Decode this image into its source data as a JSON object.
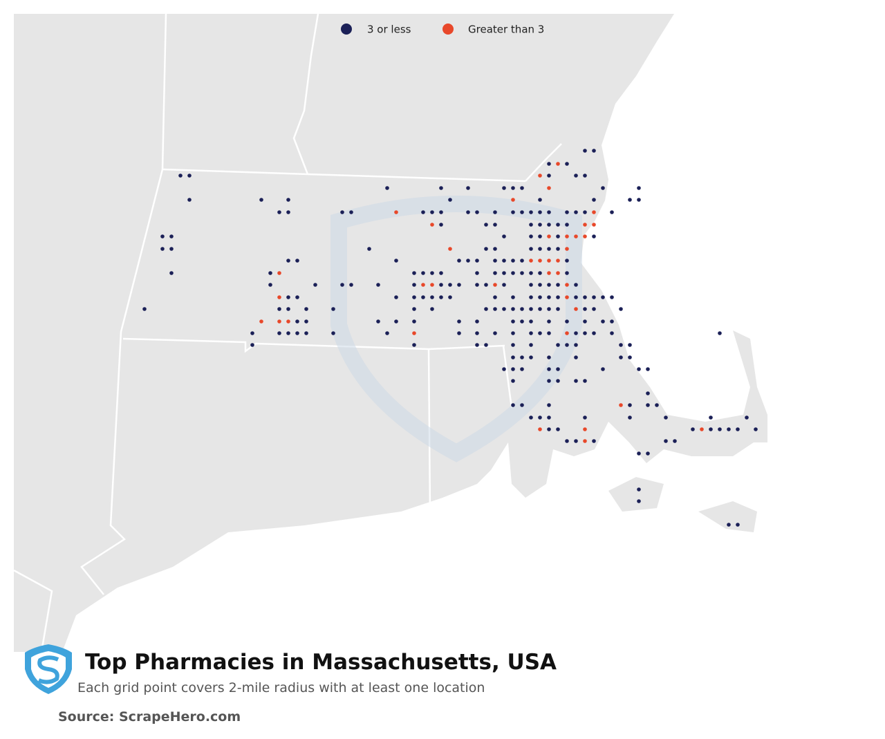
{
  "title": "Top Pharmacies in Massachusetts, USA",
  "subtitle": "Each grid point covers 2-mile radius with at least one location",
  "source": "Source: ScrapeHero.com",
  "legend": [
    {
      "label": "3 or less",
      "color": "#1b2057"
    },
    {
      "label": "Greater than 3",
      "color": "#e8482a"
    }
  ]
}
